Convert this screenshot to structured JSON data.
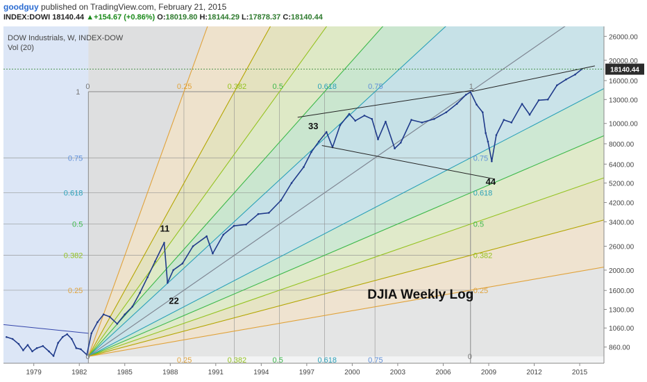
{
  "header": {
    "user": "goodguy",
    "published": " published on TradingView.com, February 21, 2015",
    "symbol": "INDEX:DOWI",
    "last": "18140.44",
    "change": "+154.67 (+0.86%)",
    "open_label": "O:",
    "open": "18019.80",
    "high_label": "H:",
    "high": "18144.29",
    "low_label": "L:",
    "low": "17878.37",
    "close_label": "C:",
    "close": "18140.44"
  },
  "legend": {
    "series": "DOW Industrials, W, INDEX-DOW",
    "volume": "Vol (20)"
  },
  "colors": {
    "fan_blue": "#5f8fd8",
    "fan_teal": "#2aa0b8",
    "fan_green": "#3cb84a",
    "fan_lime": "#94c220",
    "fan_olive": "#b3a500",
    "fan_orange": "#e0a23a",
    "price": "#1f3a8a",
    "price_label_bg": "#2b2b2b"
  },
  "chart_data": {
    "type": "line",
    "title": "DJIA Weekly Log",
    "scale": "log",
    "x_ticks": [
      "1979",
      "1982",
      "1985",
      "1988",
      "1991",
      "1994",
      "1997",
      "2000",
      "2003",
      "2006",
      "2009",
      "2012",
      "2015"
    ],
    "y_ticks": [
      "26000.00",
      "20000.00",
      "16000.00",
      "13000.00",
      "10000.00",
      "8000.00",
      "6400.00",
      "5200.00",
      "4200.00",
      "3400.00",
      "2600.00",
      "2000.00",
      "1600.00",
      "1300.00",
      "1060.00",
      "860.00"
    ],
    "ylim": [
      720,
      29000
    ],
    "last_price_label": "18140.44",
    "series": [
      {
        "values": [
          {
            "x": 1977.2,
            "y": 960
          },
          {
            "x": 1977.6,
            "y": 940
          },
          {
            "x": 1978.0,
            "y": 890
          },
          {
            "x": 1978.3,
            "y": 830
          },
          {
            "x": 1978.6,
            "y": 880
          },
          {
            "x": 1978.9,
            "y": 820
          },
          {
            "x": 1979.2,
            "y": 850
          },
          {
            "x": 1979.6,
            "y": 870
          },
          {
            "x": 1980.0,
            "y": 820
          },
          {
            "x": 1980.3,
            "y": 780
          },
          {
            "x": 1980.6,
            "y": 900
          },
          {
            "x": 1980.9,
            "y": 960
          },
          {
            "x": 1981.2,
            "y": 990
          },
          {
            "x": 1981.5,
            "y": 940
          },
          {
            "x": 1981.8,
            "y": 850
          },
          {
            "x": 1982.1,
            "y": 840
          },
          {
            "x": 1982.5,
            "y": 790
          },
          {
            "x": 1982.8,
            "y": 1000
          },
          {
            "x": 1983.2,
            "y": 1130
          },
          {
            "x": 1983.6,
            "y": 1230
          },
          {
            "x": 1984.0,
            "y": 1200
          },
          {
            "x": 1984.5,
            "y": 1110
          },
          {
            "x": 1985.0,
            "y": 1230
          },
          {
            "x": 1985.5,
            "y": 1340
          },
          {
            "x": 1986.0,
            "y": 1560
          },
          {
            "x": 1986.5,
            "y": 1850
          },
          {
            "x": 1987.0,
            "y": 2200
          },
          {
            "x": 1987.6,
            "y": 2700
          },
          {
            "x": 1987.82,
            "y": 1740
          },
          {
            "x": 1988.2,
            "y": 2000
          },
          {
            "x": 1988.8,
            "y": 2150
          },
          {
            "x": 1989.5,
            "y": 2600
          },
          {
            "x": 1990.4,
            "y": 2900
          },
          {
            "x": 1990.8,
            "y": 2400
          },
          {
            "x": 1991.5,
            "y": 2950
          },
          {
            "x": 1992.2,
            "y": 3250
          },
          {
            "x": 1993.0,
            "y": 3300
          },
          {
            "x": 1993.8,
            "y": 3700
          },
          {
            "x": 1994.5,
            "y": 3750
          },
          {
            "x": 1995.3,
            "y": 4300
          },
          {
            "x": 1996.0,
            "y": 5200
          },
          {
            "x": 1996.8,
            "y": 6200
          },
          {
            "x": 1997.3,
            "y": 7300
          },
          {
            "x": 1997.8,
            "y": 8200
          },
          {
            "x": 1998.3,
            "y": 9100
          },
          {
            "x": 1998.7,
            "y": 7700
          },
          {
            "x": 1999.2,
            "y": 9800
          },
          {
            "x": 1999.8,
            "y": 11100
          },
          {
            "x": 2000.2,
            "y": 10300
          },
          {
            "x": 2000.8,
            "y": 10900
          },
          {
            "x": 2001.3,
            "y": 10500
          },
          {
            "x": 2001.7,
            "y": 8400
          },
          {
            "x": 2002.2,
            "y": 10200
          },
          {
            "x": 2002.8,
            "y": 7600
          },
          {
            "x": 2003.2,
            "y": 8100
          },
          {
            "x": 2003.9,
            "y": 10400
          },
          {
            "x": 2004.6,
            "y": 10100
          },
          {
            "x": 2005.4,
            "y": 10500
          },
          {
            "x": 2006.2,
            "y": 11300
          },
          {
            "x": 2006.9,
            "y": 12400
          },
          {
            "x": 2007.5,
            "y": 13700
          },
          {
            "x": 2007.8,
            "y": 14100
          },
          {
            "x": 2008.2,
            "y": 12300
          },
          {
            "x": 2008.6,
            "y": 11300
          },
          {
            "x": 2008.8,
            "y": 9000
          },
          {
            "x": 2008.95,
            "y": 8200
          },
          {
            "x": 2009.2,
            "y": 6600
          },
          {
            "x": 2009.5,
            "y": 8800
          },
          {
            "x": 2010.0,
            "y": 10400
          },
          {
            "x": 2010.5,
            "y": 10100
          },
          {
            "x": 2011.2,
            "y": 12400
          },
          {
            "x": 2011.7,
            "y": 11000
          },
          {
            "x": 2012.3,
            "y": 12900
          },
          {
            "x": 2012.9,
            "y": 13000
          },
          {
            "x": 2013.5,
            "y": 15200
          },
          {
            "x": 2014.1,
            "y": 16200
          },
          {
            "x": 2014.7,
            "y": 17100
          },
          {
            "x": 2015.14,
            "y": 18140
          }
        ]
      }
    ],
    "fan": {
      "origin": {
        "x": 1982.6,
        "y": 776
      },
      "top": {
        "x": 2007.8,
        "y": 14165
      },
      "levels": [
        "0.25",
        "0.382",
        "0.5",
        "0.618",
        "0.75",
        "1"
      ],
      "inner_labels": [
        "0",
        "0.25",
        "0.382",
        "0.5",
        "0.618",
        "0.75"
      ]
    },
    "annotations": [
      "11",
      "22",
      "33",
      "44"
    ]
  }
}
